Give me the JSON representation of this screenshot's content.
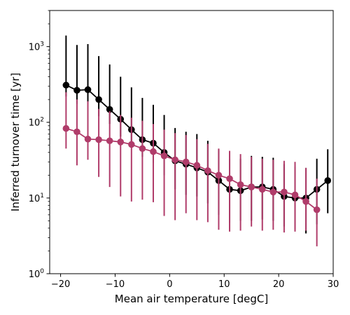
{
  "chart_data": {
    "type": "scatter",
    "title": "",
    "xlabel": "Mean air temperature [degC]",
    "ylabel": "Inferred turnover time [yr]",
    "xlim": [
      -22,
      30
    ],
    "ylim": [
      1,
      3000
    ],
    "yscale": "log",
    "grid": false,
    "x_ticks": [
      -20,
      -10,
      0,
      10,
      20,
      30
    ],
    "x_tick_labels": [
      "−20",
      "−10",
      "0",
      "10",
      "20",
      "30"
    ],
    "y_ticks": [
      1,
      10,
      100,
      1000
    ],
    "y_tick_labels": [
      {
        "base": "10",
        "exp": "0"
      },
      {
        "base": "10",
        "exp": "1"
      },
      {
        "base": "10",
        "exp": "2"
      },
      {
        "base": "10",
        "exp": "3"
      }
    ],
    "series": [
      {
        "color": "#000000",
        "x": [
          -19,
          -17,
          -15,
          -13,
          -11,
          -9,
          -7,
          -5,
          -3,
          -1,
          1,
          3,
          5,
          7,
          9,
          11,
          13,
          15,
          17,
          19,
          21,
          23,
          25,
          27,
          29
        ],
        "y": [
          310,
          265,
          270,
          200,
          148,
          110,
          80,
          59,
          53,
          40,
          31,
          28,
          25,
          22,
          17,
          13,
          12.5,
          14,
          14,
          13,
          10.5,
          10,
          10,
          13,
          17
        ],
        "y_err_low": [
          220,
          175,
          180,
          120,
          95,
          65,
          50,
          35,
          29,
          20,
          13,
          11,
          10.5,
          8.5,
          6,
          4.7,
          5,
          5,
          5.2,
          5,
          4.2,
          3.8,
          3.4,
          4.5,
          6.3
        ],
        "y_err_high": [
          1400,
          1050,
          1080,
          750,
          580,
          400,
          290,
          210,
          170,
          125,
          84,
          75,
          70,
          57,
          44,
          33,
          33,
          36,
          35,
          34,
          28,
          26,
          25,
          33,
          44
        ]
      },
      {
        "color": "#b03c6a",
        "x": [
          -19,
          -17,
          -15,
          -13,
          -11,
          -9,
          -7,
          -5,
          -3,
          -1,
          1,
          3,
          5,
          7,
          9,
          11,
          13,
          15,
          17,
          19,
          21,
          23,
          25,
          27
        ],
        "y": [
          83,
          75,
          60,
          59,
          57,
          55,
          51,
          45,
          41,
          36,
          32,
          30,
          27,
          23,
          20,
          18,
          15,
          14,
          13,
          12,
          12,
          11,
          9,
          7
        ],
        "y_err_low": [
          45,
          27,
          32,
          19,
          14,
          10.5,
          9,
          9.5,
          8.8,
          5.8,
          5.1,
          6.3,
          5.1,
          4.8,
          3.8,
          3.6,
          3.7,
          4.2,
          3.7,
          3.8,
          3.5,
          3.6,
          3.7,
          2.3
        ],
        "y_err_high": [
          250,
          200,
          190,
          150,
          140,
          125,
          115,
          105,
          95,
          80,
          72,
          68,
          60,
          52,
          45,
          42,
          38,
          35,
          33,
          32,
          31,
          30,
          25,
          18
        ]
      }
    ]
  }
}
